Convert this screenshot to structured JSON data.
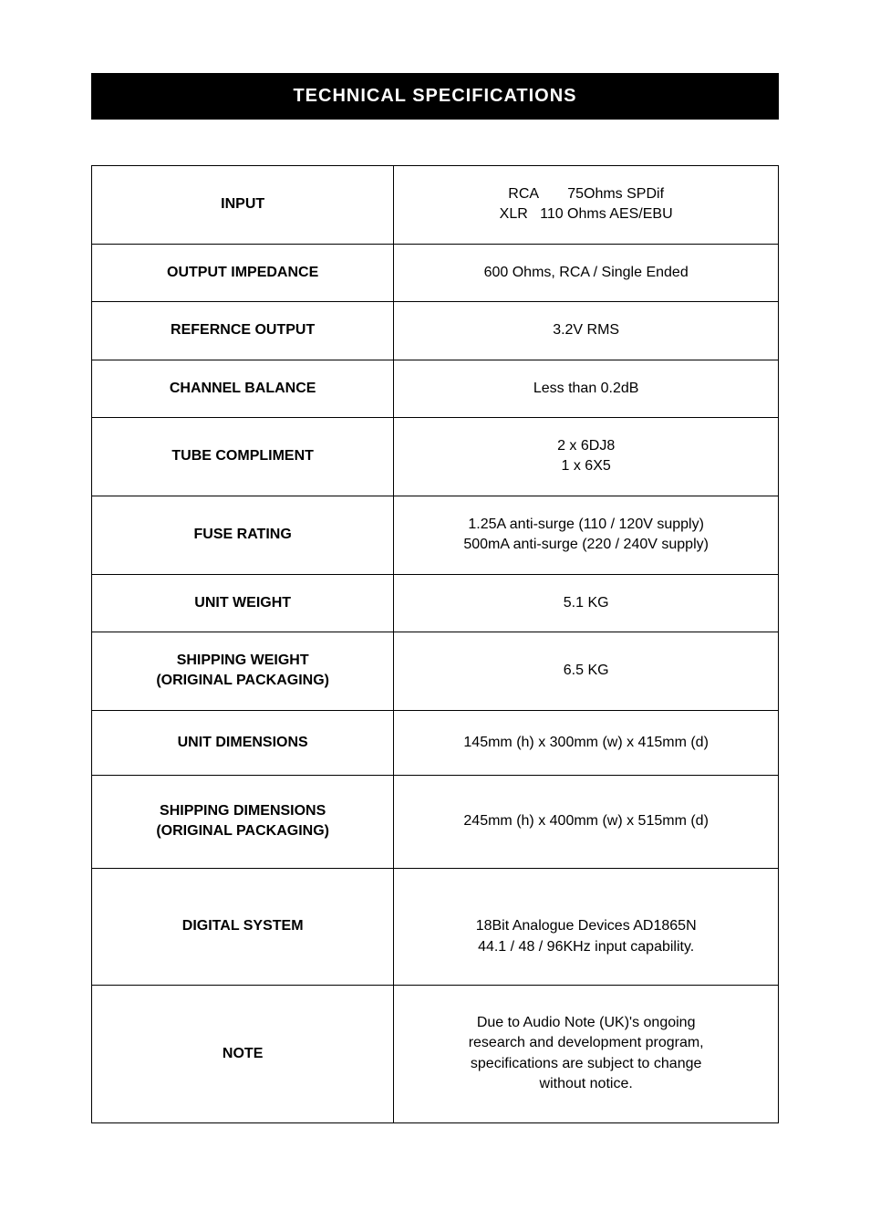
{
  "header": {
    "title": "TECHNICAL SPECIFICATIONS",
    "background_color": "#000000",
    "text_color": "#ffffff",
    "fontsize": 20
  },
  "table": {
    "border_color": "#000000",
    "label_fontweight": "bold",
    "fontsize": 16,
    "rows": [
      {
        "label": "INPUT",
        "value": "RCA       75Ohms SPDif\nXLR   110 Ohms AES/EBU"
      },
      {
        "label": "OUTPUT IMPEDANCE",
        "value": "600 Ohms, RCA / Single Ended"
      },
      {
        "label": "REFERNCE OUTPUT",
        "value": "3.2V RMS"
      },
      {
        "label": "CHANNEL BALANCE",
        "value": "Less than 0.2dB"
      },
      {
        "label": "TUBE COMPLIMENT",
        "value": "2 x 6DJ8\n1 x 6X5"
      },
      {
        "label": "FUSE RATING",
        "value": "1.25A anti-surge (110 / 120V supply)\n500mA anti-surge (220 / 240V supply)"
      },
      {
        "label": "UNIT WEIGHT",
        "value": "5.1 KG"
      },
      {
        "label": "SHIPPING WEIGHT\n(ORIGINAL PACKAGING)",
        "value": "6.5 KG"
      },
      {
        "label": "UNIT DIMENSIONS",
        "value": "145mm (h) x 300mm (w) x 415mm (d)"
      },
      {
        "label": "SHIPPING DIMENSIONS\n(ORIGINAL PACKAGING)",
        "value": "245mm (h) x 400mm (w) x 515mm (d)"
      },
      {
        "label": "DIGITAL SYSTEM",
        "value": "\n18Bit Analogue Devices AD1865N\n44.1 / 48 / 96KHz input capability."
      },
      {
        "label": "NOTE",
        "value": "Due to Audio Note (UK)'s ongoing\nresearch and development program,\nspecifications are subject to change\nwithout notice."
      }
    ]
  }
}
